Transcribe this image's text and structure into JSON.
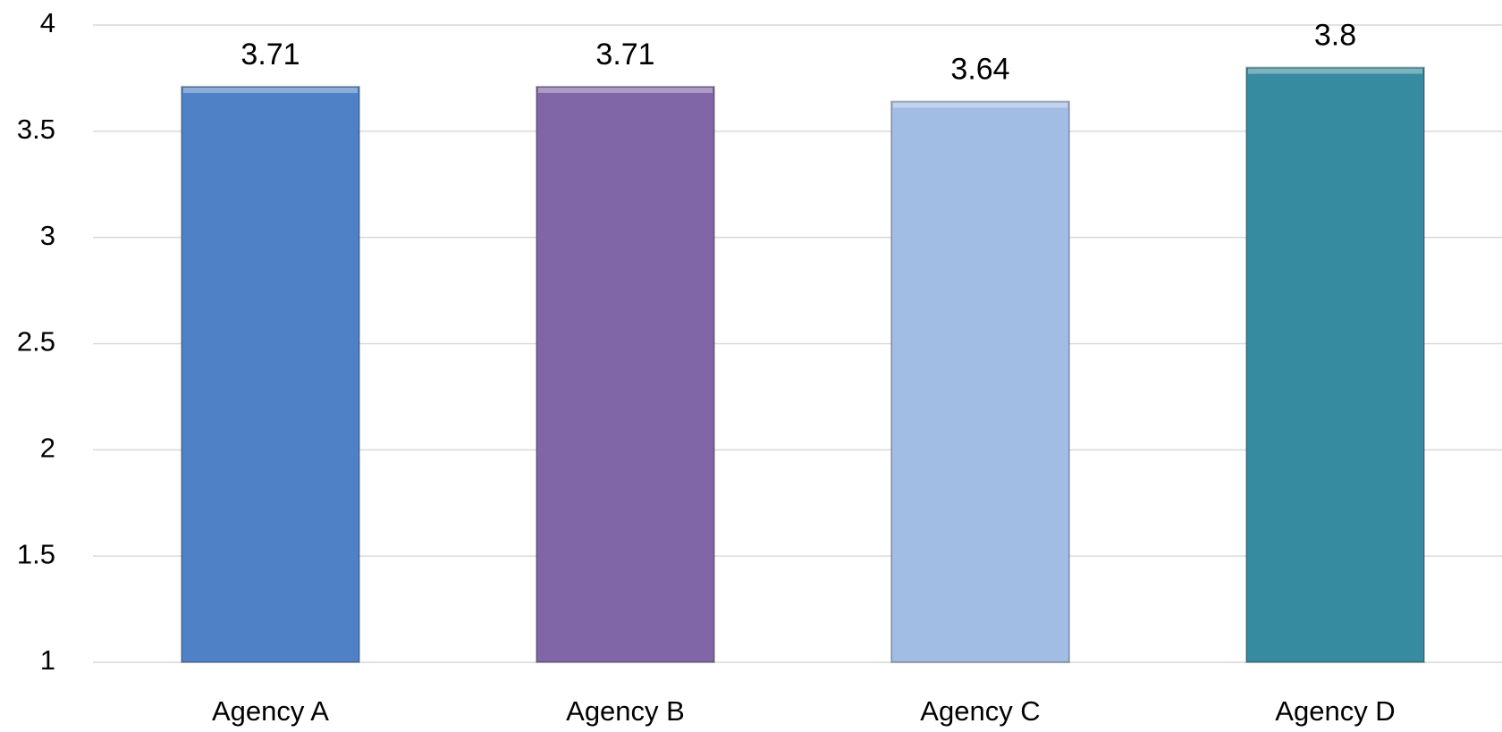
{
  "chart_data": {
    "type": "bar",
    "categories": [
      "Agency A",
      "Agency B",
      "Agency C",
      "Agency D"
    ],
    "values": [
      3.71,
      3.71,
      3.64,
      3.8
    ],
    "colors": [
      "#4f81c7",
      "#8066a6",
      "#a2bde4",
      "#378ba0"
    ],
    "ylim": [
      1,
      4
    ],
    "yticks": [
      1,
      1.5,
      2,
      2.5,
      3,
      3.5,
      4
    ],
    "grid": true
  }
}
